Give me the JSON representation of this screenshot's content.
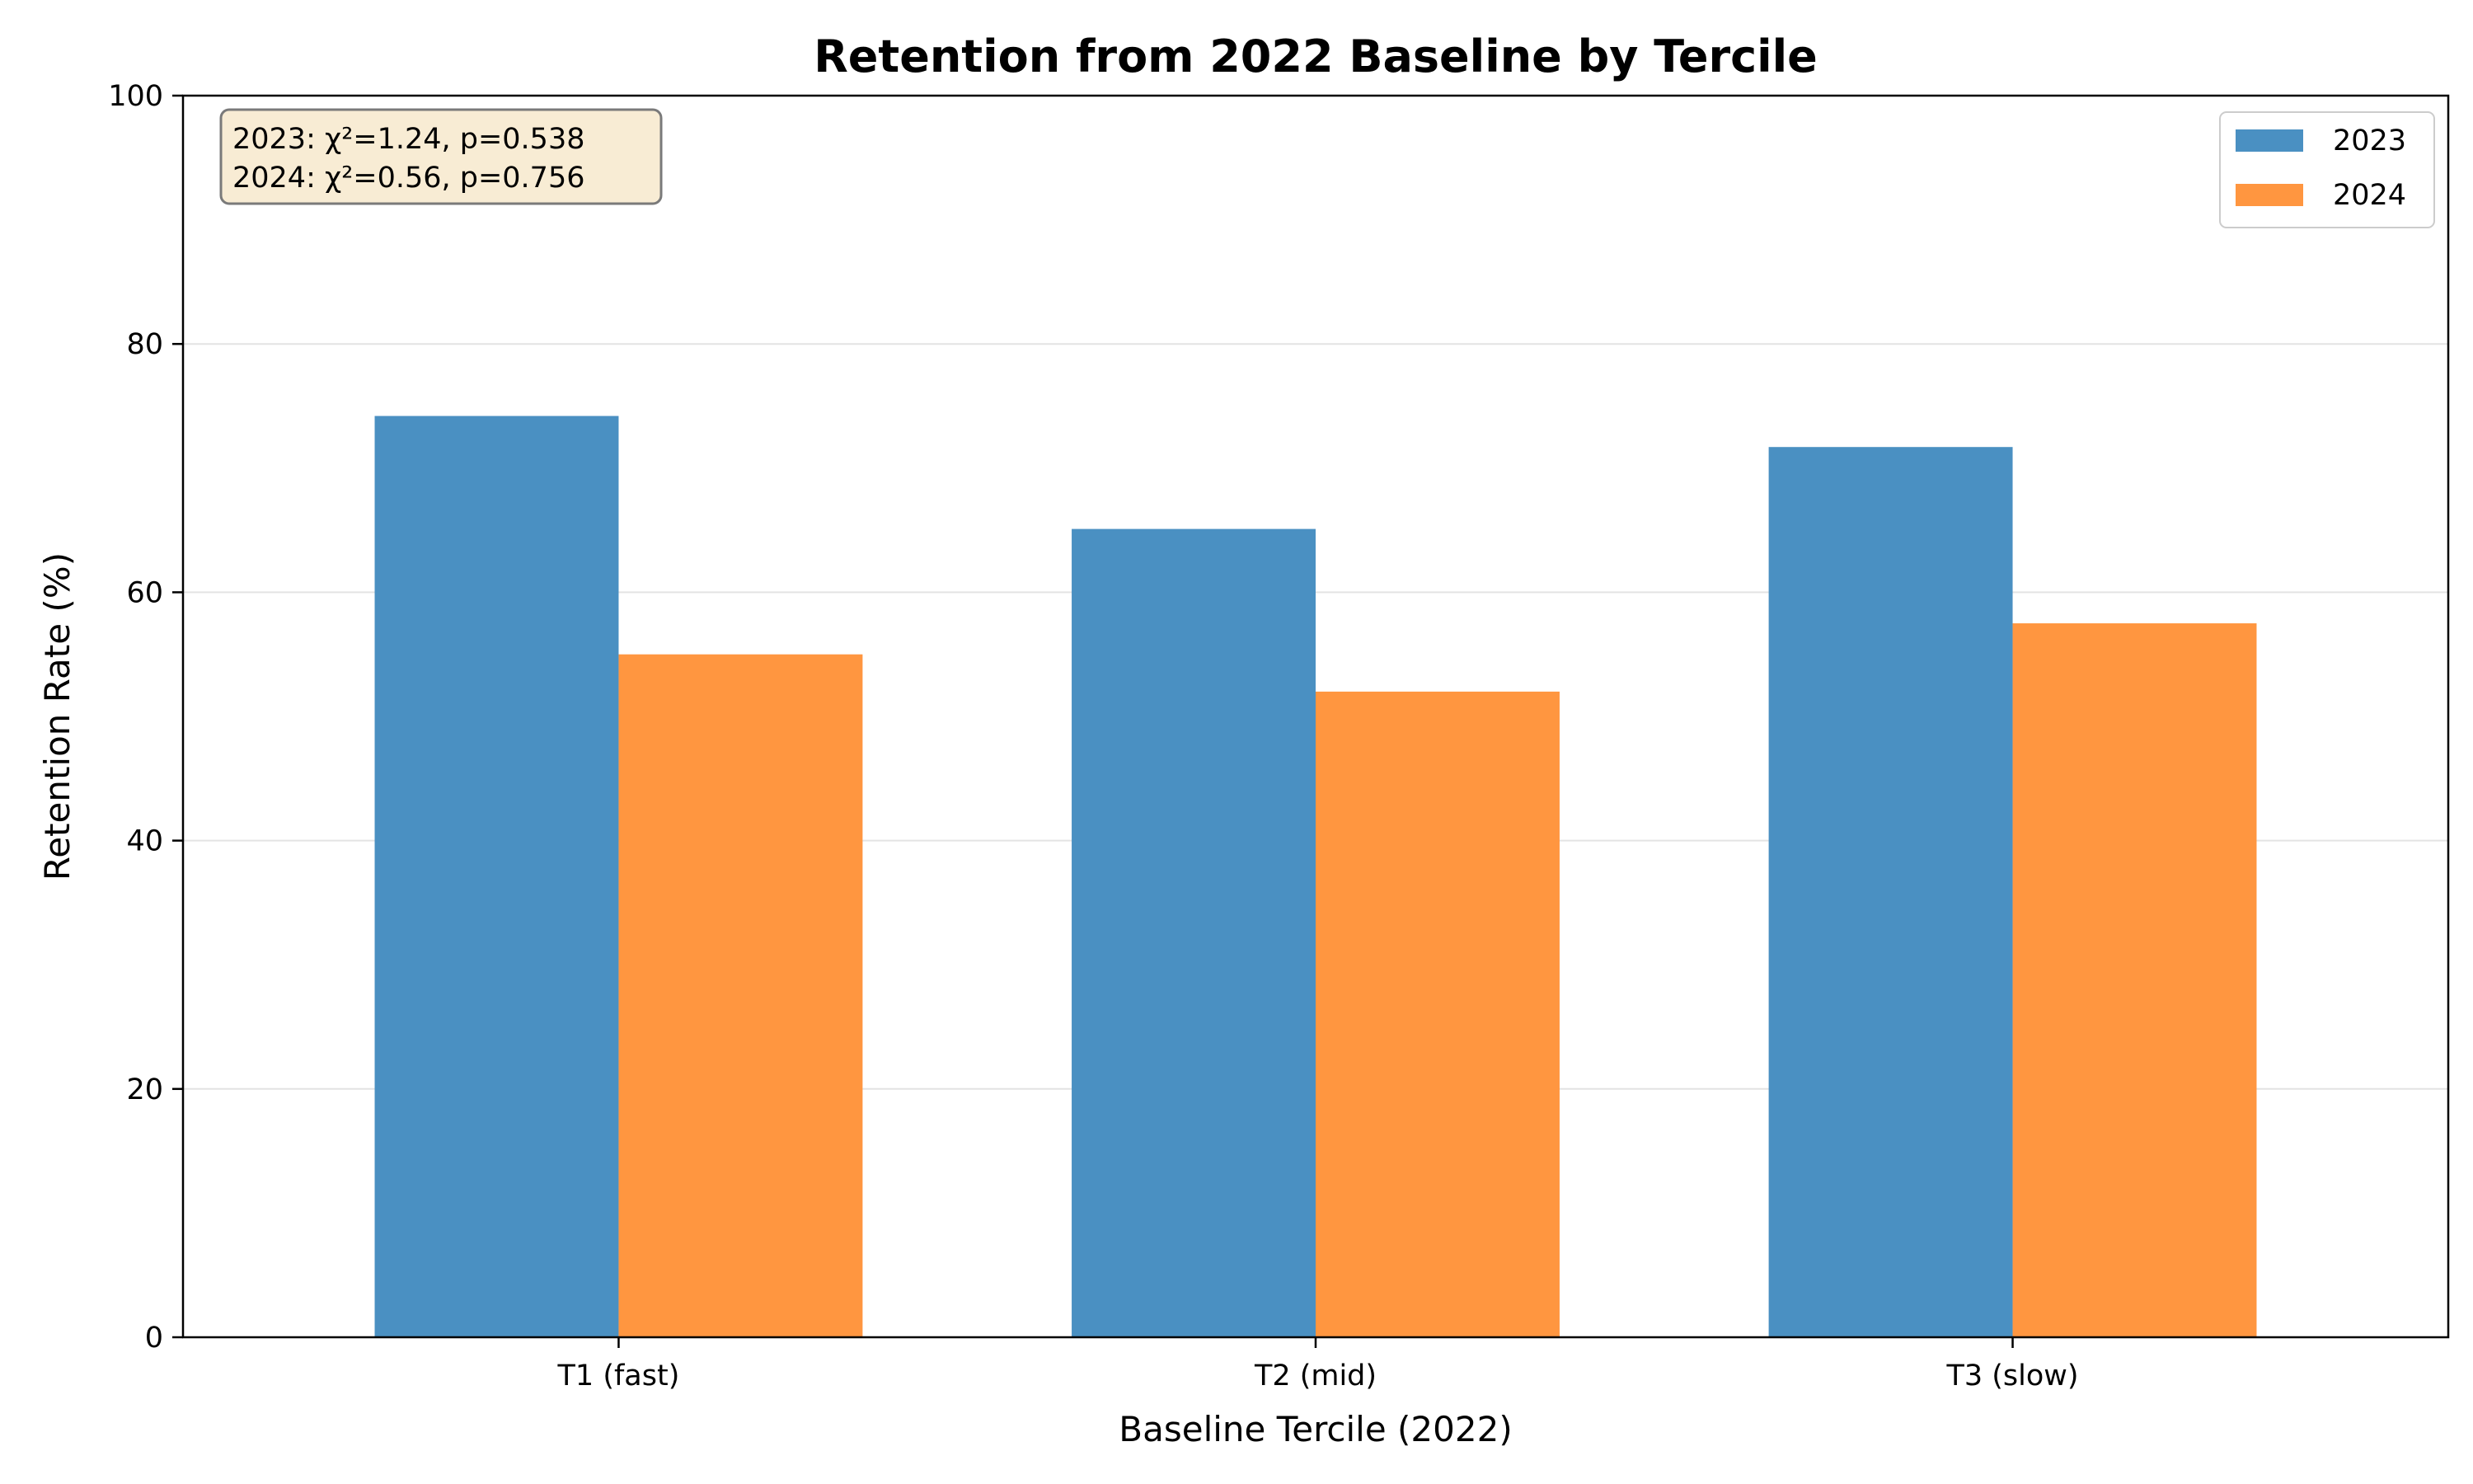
{
  "chart_data": {
    "type": "bar",
    "title": "Retention from 2022 Baseline by Tercile",
    "xlabel": "Baseline Tercile (2022)",
    "ylabel": "Retention Rate (%)",
    "categories": [
      "T1 (fast)",
      "T2 (mid)",
      "T3 (slow)"
    ],
    "series": [
      {
        "name": "2023",
        "color": "#4a90c2",
        "values": [
          74.2,
          65.1,
          71.7
        ]
      },
      {
        "name": "2024",
        "color": "#ff9640",
        "values": [
          55.0,
          52.0,
          57.5
        ]
      }
    ],
    "ylim": [
      0,
      100
    ],
    "yticks": [
      0,
      20,
      40,
      60,
      80,
      100
    ],
    "grid": "horizontal",
    "legend_position": "top-right",
    "annotation": {
      "lines": [
        "2023: χ²=1.24, p=0.538",
        "2024: χ²=0.56, p=0.756"
      ],
      "position": "top-left"
    }
  }
}
